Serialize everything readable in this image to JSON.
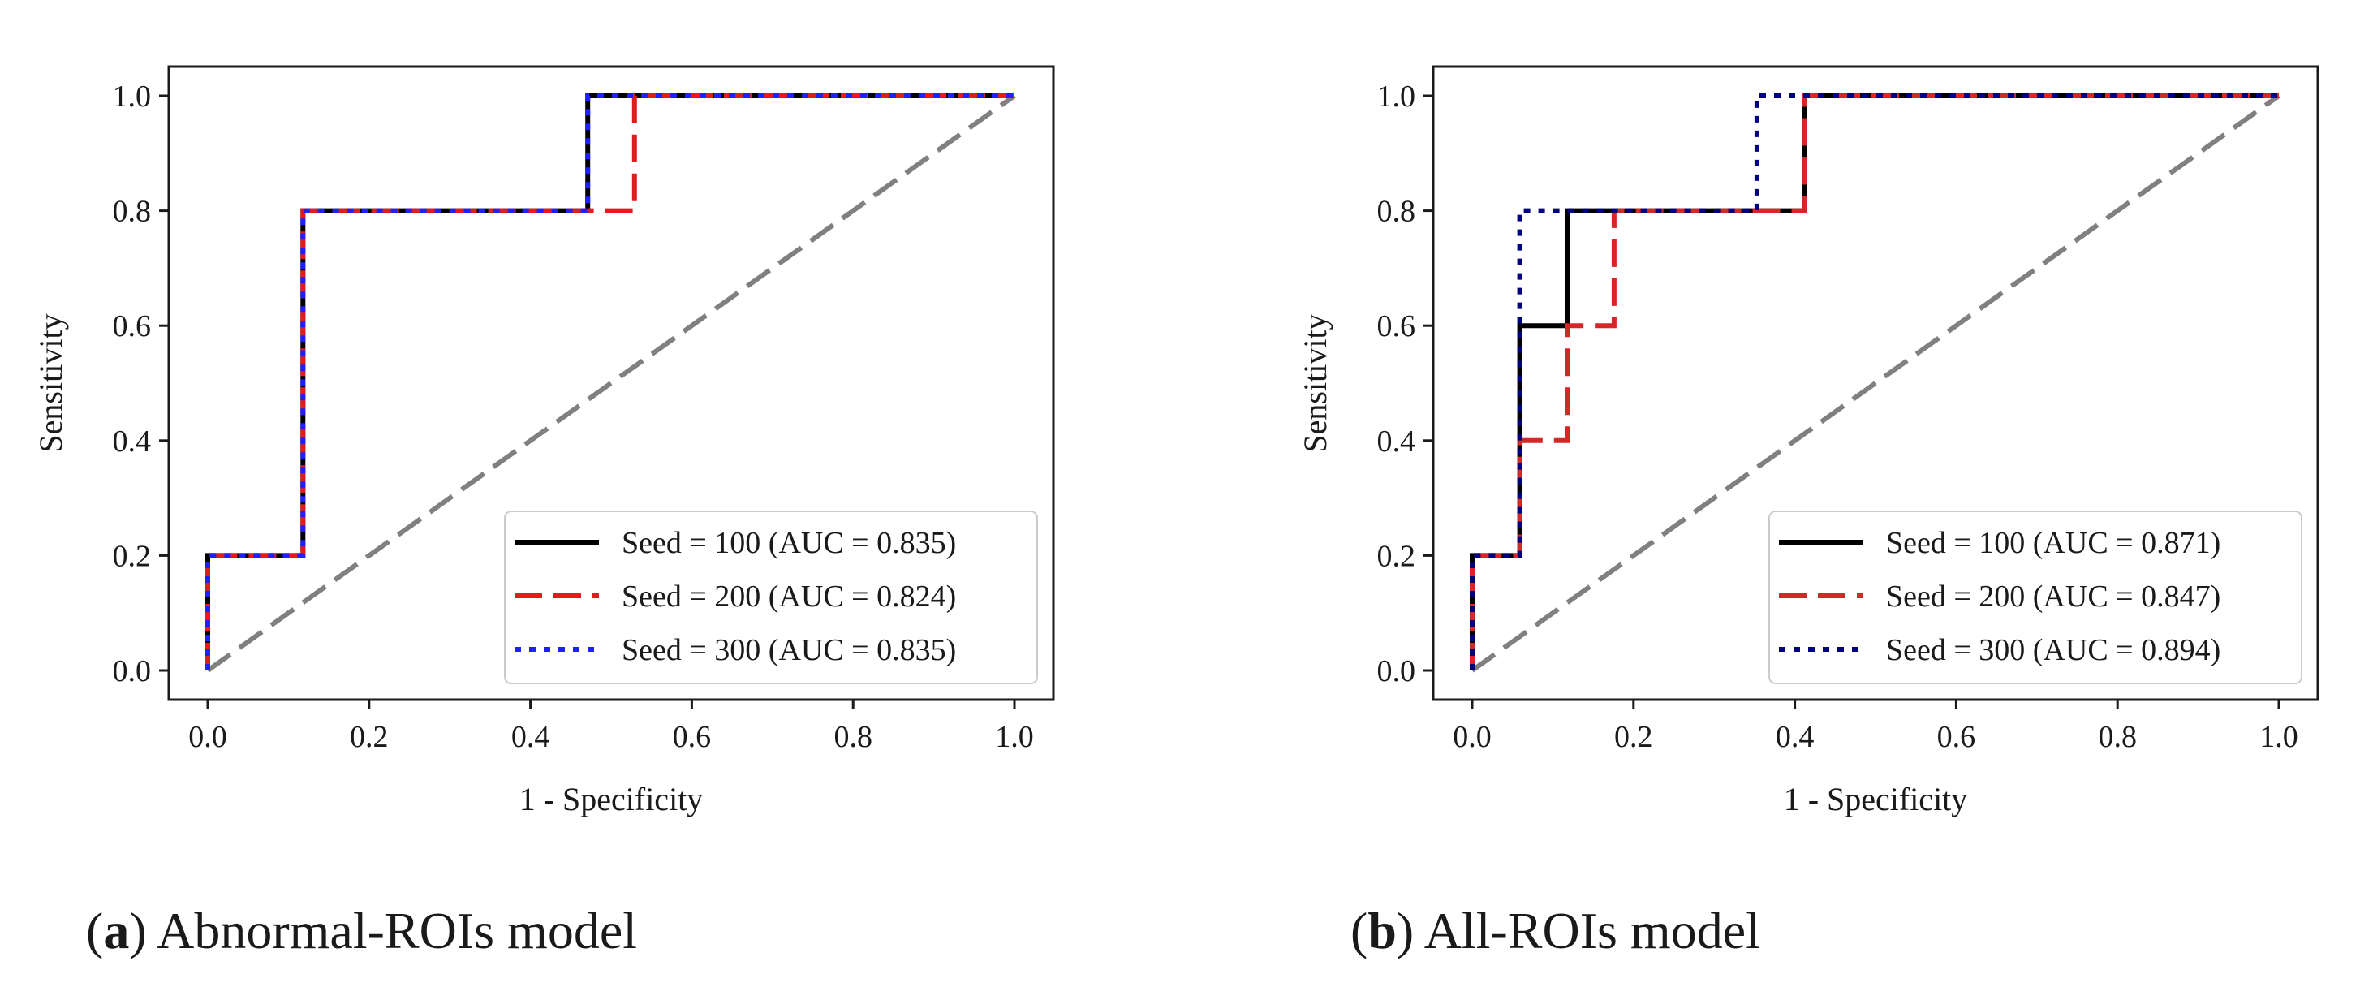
{
  "chart_data": [
    {
      "type": "line",
      "title": "",
      "caption_letter": "a",
      "caption_text": "Abnormal-ROIs model",
      "xlabel": "1 - Specificity",
      "ylabel": "Sensitivity",
      "xlim": [
        0,
        1
      ],
      "ylim": [
        0,
        1
      ],
      "xticks": [
        "0.0",
        "0.2",
        "0.4",
        "0.6",
        "0.8",
        "1.0"
      ],
      "yticks": [
        "0.0",
        "0.2",
        "0.4",
        "0.6",
        "0.8",
        "1.0"
      ],
      "grid": false,
      "legend_position": "lower-right",
      "diagonal": {
        "name": "chance",
        "color": "#808080",
        "style": "dashed"
      },
      "series": [
        {
          "name": "Seed = 100 (AUC = 0.835)",
          "color": "#000000",
          "style": "solid",
          "x": [
            0,
            0,
            0.118,
            0.118,
            0.471,
            0.471,
            1.0
          ],
          "y": [
            0,
            0.2,
            0.2,
            0.8,
            0.8,
            1.0,
            1.0
          ]
        },
        {
          "name": "Seed = 200 (AUC = 0.824)",
          "color": "#e41a1c",
          "style": "dashed",
          "x": [
            0,
            0,
            0.118,
            0.118,
            0.529,
            0.529,
            1.0
          ],
          "y": [
            0,
            0.2,
            0.2,
            0.8,
            0.8,
            1.0,
            1.0
          ]
        },
        {
          "name": "Seed = 300 (AUC = 0.835)",
          "color": "#1f1fff",
          "style": "dotted",
          "x": [
            0,
            0,
            0.118,
            0.118,
            0.471,
            0.471,
            1.0
          ],
          "y": [
            0,
            0.2,
            0.2,
            0.8,
            0.8,
            1.0,
            1.0
          ]
        }
      ]
    },
    {
      "type": "line",
      "title": "",
      "caption_letter": "b",
      "caption_text": "All-ROIs model",
      "xlabel": "1 - Specificity",
      "ylabel": "Sensitivity",
      "xlim": [
        0,
        1
      ],
      "ylim": [
        0,
        1
      ],
      "xticks": [
        "0.0",
        "0.2",
        "0.4",
        "0.6",
        "0.8",
        "1.0"
      ],
      "yticks": [
        "0.0",
        "0.2",
        "0.4",
        "0.6",
        "0.8",
        "1.0"
      ],
      "grid": false,
      "legend_position": "lower-right",
      "diagonal": {
        "name": "chance",
        "color": "#808080",
        "style": "dashed"
      },
      "series": [
        {
          "name": "Seed = 100 (AUC = 0.871)",
          "color": "#000000",
          "style": "solid",
          "x": [
            0,
            0,
            0.059,
            0.059,
            0.118,
            0.118,
            0.412,
            0.412,
            1.0
          ],
          "y": [
            0,
            0.2,
            0.2,
            0.6,
            0.6,
            0.8,
            0.8,
            1.0,
            1.0
          ]
        },
        {
          "name": "Seed = 200 (AUC = 0.847)",
          "color": "#d62728",
          "style": "dashed",
          "x": [
            0,
            0,
            0.059,
            0.059,
            0.118,
            0.118,
            0.176,
            0.176,
            0.412,
            0.412,
            1.0
          ],
          "y": [
            0,
            0.2,
            0.2,
            0.4,
            0.4,
            0.6,
            0.6,
            0.8,
            0.8,
            1.0,
            1.0
          ]
        },
        {
          "name": "Seed = 300 (AUC = 0.894)",
          "color": "#000080",
          "style": "dotted",
          "x": [
            0,
            0,
            0.059,
            0.059,
            0.353,
            0.353,
            1.0
          ],
          "y": [
            0,
            0.2,
            0.2,
            0.8,
            0.8,
            1.0,
            1.0
          ]
        }
      ]
    }
  ]
}
